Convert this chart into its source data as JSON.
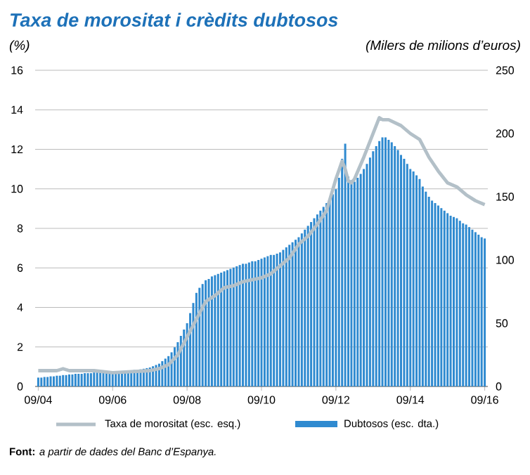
{
  "chart_data": {
    "type": "bar",
    "title": "Taxa de morositat i crèdits dubtosos",
    "ylabel": "(%)",
    "y2label": "(Milers de milions d’euros)",
    "annotations": [
      "**Font:** *a partir de dades del Banc d’Espanya.*"
    ],
    "xlim": [
      "2004-08",
      "2016-10"
    ],
    "xticks": [
      {
        "value": "2004-09",
        "label": "09/04"
      },
      {
        "value": "2006-09",
        "label": "09/06"
      },
      {
        "value": "2008-09",
        "label": "09/08"
      },
      {
        "value": "2010-09",
        "label": "09/10"
      },
      {
        "value": "2012-09",
        "label": "09/12"
      },
      {
        "value": "2014-09",
        "label": "09/14"
      },
      {
        "value": "2016-09",
        "label": "09/16"
      }
    ],
    "ylim": [
      0,
      16
    ],
    "yticks": [
      0,
      2,
      4,
      6,
      8,
      10,
      12,
      14,
      16
    ],
    "y2lim": [
      0,
      250
    ],
    "y2ticks": [
      0,
      50,
      100,
      150,
      200,
      250
    ],
    "grid": "y",
    "legend": "bottom",
    "series": [
      {
        "name": "Taxa de morositat (esc. esq.)",
        "type": "line",
        "axis": "y",
        "color": "#b3c0c8",
        "x": [
          "2004-09",
          "2005-03",
          "2005-05",
          "2005-07",
          "2006-03",
          "2006-09",
          "2007-03",
          "2007-09",
          "2007-12",
          "2008-03",
          "2008-06",
          "2008-09",
          "2008-12",
          "2009-03",
          "2009-06",
          "2009-09",
          "2009-12",
          "2010-03",
          "2010-06",
          "2010-09",
          "2010-12",
          "2011-03",
          "2011-06",
          "2011-09",
          "2011-12",
          "2012-03",
          "2012-06",
          "2012-09",
          "2012-11",
          "2012-12",
          "2013-01",
          "2013-02",
          "2013-03",
          "2013-06",
          "2013-09",
          "2013-11",
          "2013-12",
          "2014-02",
          "2014-06",
          "2014-09",
          "2014-12",
          "2015-03",
          "2015-06",
          "2015-09",
          "2015-12",
          "2016-03",
          "2016-06",
          "2016-09"
        ],
        "values": [
          0.8,
          0.8,
          0.9,
          0.8,
          0.8,
          0.7,
          0.75,
          0.8,
          0.9,
          1.1,
          1.6,
          2.5,
          3.4,
          4.3,
          4.6,
          5.0,
          5.1,
          5.3,
          5.4,
          5.5,
          5.7,
          6.1,
          6.5,
          7.2,
          7.6,
          8.2,
          8.9,
          10.5,
          11.4,
          11.0,
          10.4,
          10.3,
          10.5,
          11.6,
          12.8,
          13.6,
          13.5,
          13.5,
          13.2,
          12.8,
          12.5,
          11.6,
          10.9,
          10.3,
          10.1,
          9.7,
          9.4,
          9.2
        ]
      },
      {
        "name": "Dubtosos (esc. dta.)",
        "axis": "y2",
        "color": "#2f8ad0",
        "x": [
          "2004-09",
          "2004-10",
          "2004-11",
          "2004-12",
          "2005-01",
          "2005-02",
          "2005-03",
          "2005-04",
          "2005-05",
          "2005-06",
          "2005-07",
          "2005-08",
          "2005-09",
          "2005-10",
          "2005-11",
          "2005-12",
          "2006-01",
          "2006-02",
          "2006-03",
          "2006-04",
          "2006-05",
          "2006-06",
          "2006-07",
          "2006-08",
          "2006-09",
          "2006-10",
          "2006-11",
          "2006-12",
          "2007-01",
          "2007-02",
          "2007-03",
          "2007-04",
          "2007-05",
          "2007-06",
          "2007-07",
          "2007-08",
          "2007-09",
          "2007-10",
          "2007-11",
          "2007-12",
          "2008-01",
          "2008-02",
          "2008-03",
          "2008-04",
          "2008-05",
          "2008-06",
          "2008-07",
          "2008-08",
          "2008-09",
          "2008-10",
          "2008-11",
          "2008-12",
          "2009-01",
          "2009-02",
          "2009-03",
          "2009-04",
          "2009-05",
          "2009-06",
          "2009-07",
          "2009-08",
          "2009-09",
          "2009-10",
          "2009-11",
          "2009-12",
          "2010-01",
          "2010-02",
          "2010-03",
          "2010-04",
          "2010-05",
          "2010-06",
          "2010-07",
          "2010-08",
          "2010-09",
          "2010-10",
          "2010-11",
          "2010-12",
          "2011-01",
          "2011-02",
          "2011-03",
          "2011-04",
          "2011-05",
          "2011-06",
          "2011-07",
          "2011-08",
          "2011-09",
          "2011-10",
          "2011-11",
          "2011-12",
          "2012-01",
          "2012-02",
          "2012-03",
          "2012-04",
          "2012-05",
          "2012-06",
          "2012-07",
          "2012-08",
          "2012-09",
          "2012-10",
          "2012-11",
          "2012-12",
          "2013-01",
          "2013-02",
          "2013-03",
          "2013-04",
          "2013-05",
          "2013-06",
          "2013-07",
          "2013-08",
          "2013-09",
          "2013-10",
          "2013-11",
          "2013-12",
          "2014-01",
          "2014-02",
          "2014-03",
          "2014-04",
          "2014-05",
          "2014-06",
          "2014-07",
          "2014-08",
          "2014-09",
          "2014-10",
          "2014-11",
          "2014-12",
          "2015-01",
          "2015-02",
          "2015-03",
          "2015-04",
          "2015-05",
          "2015-06",
          "2015-07",
          "2015-08",
          "2015-09",
          "2015-10",
          "2015-11",
          "2015-12",
          "2016-01",
          "2016-02",
          "2016-03",
          "2016-04",
          "2016-05",
          "2016-06",
          "2016-07",
          "2016-08",
          "2016-09"
        ],
        "values": [
          7,
          7,
          7.5,
          7.5,
          8,
          8,
          8.5,
          8.5,
          9,
          9,
          9.5,
          9.5,
          10,
          10,
          10,
          10.5,
          10.5,
          10.5,
          11,
          11,
          11,
          11,
          11.5,
          11.5,
          11.5,
          12,
          12,
          12,
          12,
          12.5,
          12.5,
          13,
          13,
          13.5,
          14,
          14.5,
          15,
          16,
          17,
          18,
          20,
          22,
          24,
          27,
          31,
          35,
          40,
          45,
          50,
          58,
          66,
          74,
          78,
          81,
          84,
          85,
          87,
          88,
          89,
          90,
          91,
          92,
          93,
          94,
          95,
          96,
          97,
          97,
          98,
          99,
          99,
          100,
          101,
          102,
          103,
          104,
          104,
          105,
          106,
          108,
          110,
          112,
          114,
          116,
          118,
          121,
          124,
          127,
          130,
          133,
          136,
          139,
          142,
          145,
          148,
          152,
          156,
          165,
          180,
          192,
          166,
          163,
          162,
          165,
          168,
          172,
          176,
          181,
          186,
          190,
          194,
          197,
          197,
          195,
          193,
          190,
          187,
          183,
          180,
          176,
          172,
          170,
          167,
          164,
          158,
          154,
          150,
          147,
          145,
          143,
          141,
          139,
          137,
          135,
          134,
          133,
          131,
          129,
          128,
          126,
          124,
          122,
          120,
          118,
          117
        ]
      }
    ]
  }
}
